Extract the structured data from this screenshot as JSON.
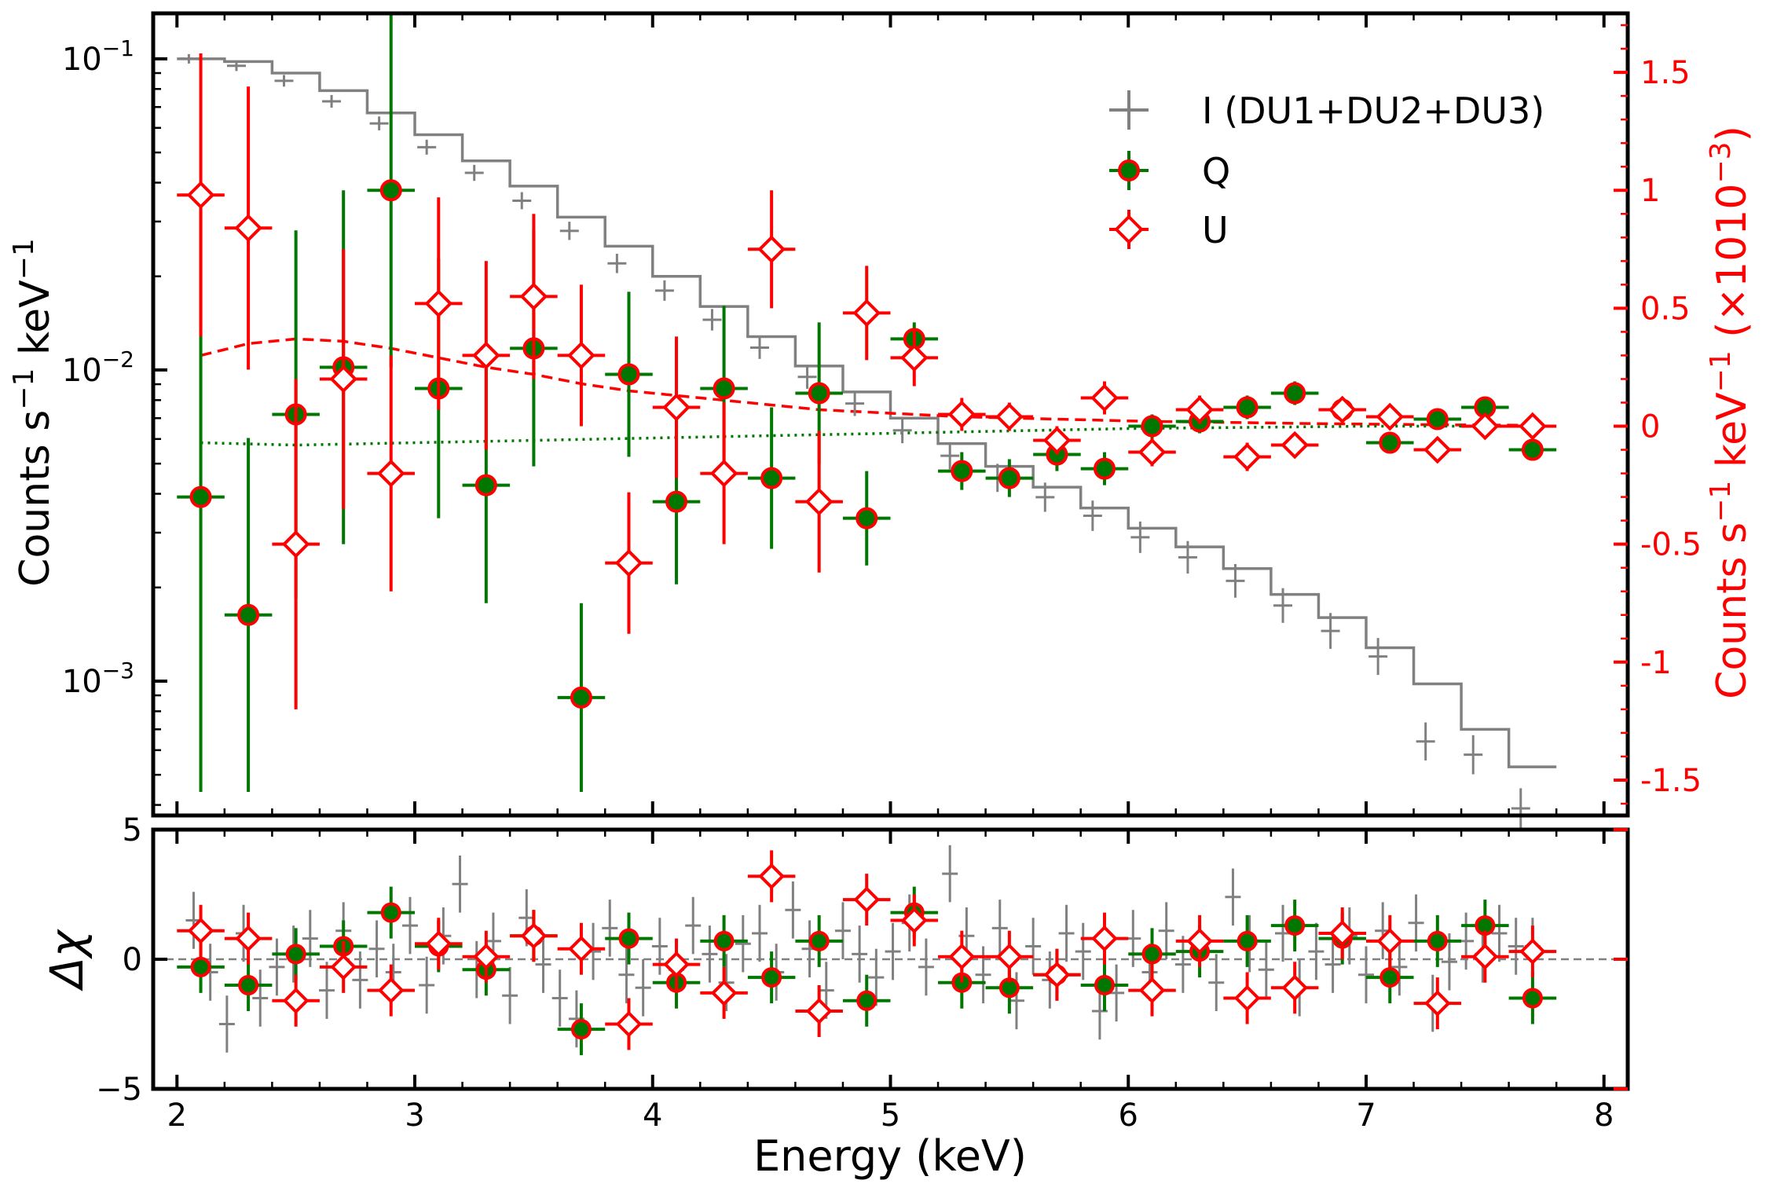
{
  "chart_data": [
    {
      "panel": "top",
      "type": "scatter",
      "xlabel": "",
      "ylabel": "Counts s^-1 keV^-1",
      "ylabel_right": "Counts s^-1 keV^-1 (×10^-3)",
      "xlim": [
        1.9,
        8.1
      ],
      "ylim": [
        0.00037,
        0.14
      ],
      "yscale": "log",
      "ylim_right": [
        -1.65,
        1.75
      ],
      "yticks_left": [
        {
          "value": 0.1,
          "mantissa": "10",
          "exp": "−1"
        },
        {
          "value": 0.01,
          "mantissa": "10",
          "exp": "−2"
        },
        {
          "value": 0.001,
          "mantissa": "10",
          "exp": "−3"
        }
      ],
      "yticks_right": [
        "1.5",
        "1",
        "0.5",
        "0",
        "-0.5",
        "-1",
        "-1.5"
      ],
      "yticks_right_values": [
        1.5,
        1.0,
        0.5,
        0.0,
        -0.5,
        -1.0,
        -1.5
      ],
      "legend": {
        "placement": "top-right",
        "entries": [
          {
            "label": "I (DU1+DU2+DU3)",
            "color": "#808080",
            "marker": "plus"
          },
          {
            "label": "Q",
            "color": "#007700",
            "marker": "filled-circle"
          },
          {
            "label": "U",
            "color": "#ff0000",
            "marker": "open-diamond"
          }
        ]
      },
      "series": [
        {
          "name": "I (DU1+DU2+DU3)",
          "axis": "left",
          "color": "#808080",
          "x": [
            2.05,
            2.25,
            2.45,
            2.65,
            2.85,
            3.05,
            3.25,
            3.45,
            3.65,
            3.85,
            4.05,
            4.25,
            4.45,
            4.65,
            4.85,
            5.05,
            5.25,
            5.45,
            5.65,
            5.85,
            6.05,
            6.25,
            6.45,
            6.65,
            6.85,
            7.05,
            7.25,
            7.45,
            7.65
          ],
          "y": [
            0.1,
            0.095,
            0.085,
            0.073,
            0.062,
            0.052,
            0.043,
            0.035,
            0.028,
            0.022,
            0.018,
            0.0145,
            0.0118,
            0.0095,
            0.0078,
            0.0064,
            0.0053,
            0.0045,
            0.0039,
            0.0034,
            0.0029,
            0.0025,
            0.0021,
            0.00175,
            0.00145,
            0.0012,
            0.00064,
            0.00058,
            0.00039
          ]
        },
        {
          "name": "Q",
          "axis": "right",
          "color": "#007700",
          "x": [
            2.1,
            2.3,
            2.5,
            2.7,
            2.9,
            3.1,
            3.3,
            3.5,
            3.7,
            3.9,
            4.1,
            4.3,
            4.5,
            4.7,
            4.9,
            5.1,
            5.3,
            5.5,
            5.7,
            5.9,
            6.1,
            6.3,
            6.5,
            6.7,
            6.9,
            7.1,
            7.3,
            7.5,
            7.7
          ],
          "y": [
            -0.3,
            -0.8,
            0.05,
            0.25,
            1.0,
            0.16,
            -0.25,
            0.33,
            -1.15,
            0.22,
            -0.32,
            0.16,
            -0.22,
            0.14,
            -0.39,
            0.37,
            -0.19,
            -0.22,
            -0.12,
            -0.18,
            0.0,
            0.02,
            0.08,
            0.14,
            0.07,
            -0.07,
            0.03,
            0.08,
            -0.1
          ],
          "yerr": [
            1.25,
            0.75,
            0.78,
            0.75,
            0.75,
            0.55,
            0.5,
            0.5,
            0.4,
            0.35,
            0.35,
            0.35,
            0.3,
            0.3,
            0.2,
            0.07,
            0.08,
            0.08,
            0.07,
            0.07,
            0.05,
            0.05,
            0.05,
            0.05,
            0.04,
            0.04,
            0.03,
            0.04,
            0.03
          ]
        },
        {
          "name": "U",
          "axis": "right",
          "color": "#ff0000",
          "x": [
            2.1,
            2.3,
            2.5,
            2.7,
            2.9,
            3.1,
            3.3,
            3.5,
            3.7,
            3.9,
            4.1,
            4.3,
            4.5,
            4.7,
            4.9,
            5.1,
            5.3,
            5.5,
            5.7,
            5.9,
            6.1,
            6.3,
            6.5,
            6.7,
            6.9,
            7.1,
            7.3,
            7.5,
            7.7
          ],
          "y": [
            0.98,
            0.84,
            -0.5,
            0.2,
            -0.2,
            0.52,
            0.3,
            0.55,
            0.3,
            -0.58,
            0.08,
            -0.2,
            0.75,
            -0.32,
            0.48,
            0.29,
            0.05,
            0.04,
            -0.06,
            0.12,
            -0.11,
            0.07,
            -0.13,
            -0.08,
            0.07,
            0.04,
            -0.1,
            0.0,
            0.0
          ],
          "yerr": [
            0.6,
            0.6,
            0.7,
            0.55,
            0.5,
            0.45,
            0.4,
            0.35,
            0.3,
            0.3,
            0.3,
            0.3,
            0.25,
            0.3,
            0.2,
            0.12,
            0.07,
            0.06,
            0.06,
            0.07,
            0.06,
            0.06,
            0.06,
            0.05,
            0.05,
            0.05,
            0.04,
            0.04,
            0.04
          ]
        }
      ],
      "models": [
        {
          "series": "I (DU1+DU2+DU3)",
          "axis": "left",
          "style": "solid-step",
          "color": "#808080",
          "x": [
            2.0,
            2.2,
            2.4,
            2.6,
            2.8,
            3.0,
            3.2,
            3.4,
            3.6,
            3.8,
            4.0,
            4.2,
            4.4,
            4.6,
            4.8,
            5.0,
            5.2,
            5.4,
            5.6,
            5.8,
            6.0,
            6.2,
            6.4,
            6.6,
            6.8,
            7.0,
            7.2,
            7.4,
            7.6,
            7.8
          ],
          "y": [
            0.1,
            0.098,
            0.09,
            0.079,
            0.067,
            0.057,
            0.047,
            0.039,
            0.031,
            0.025,
            0.02,
            0.016,
            0.0128,
            0.0103,
            0.0085,
            0.007,
            0.0058,
            0.0049,
            0.0042,
            0.0036,
            0.0031,
            0.0027,
            0.0023,
            0.0019,
            0.0016,
            0.00128,
            0.00098,
            0.0007,
            0.00053,
            0.00039
          ]
        },
        {
          "series": "U",
          "axis": "right",
          "style": "dashed",
          "color": "#ff0000",
          "x": [
            2.1,
            2.3,
            2.5,
            2.7,
            2.9,
            3.1,
            3.3,
            3.5,
            3.7,
            3.9,
            4.1,
            4.3,
            4.5,
            4.7,
            4.9,
            5.1,
            5.3,
            5.5,
            5.7,
            5.9,
            6.1,
            6.3,
            6.5,
            6.7,
            6.9,
            7.1,
            7.3,
            7.5,
            7.7
          ],
          "y": [
            0.3,
            0.35,
            0.37,
            0.36,
            0.33,
            0.29,
            0.25,
            0.22,
            0.18,
            0.15,
            0.13,
            0.11,
            0.09,
            0.07,
            0.06,
            0.05,
            0.04,
            0.035,
            0.03,
            0.025,
            0.02,
            0.018,
            0.015,
            0.012,
            0.01,
            0.008,
            0.006,
            0.005,
            0.004
          ]
        },
        {
          "series": "Q",
          "axis": "right",
          "style": "dotted",
          "color": "#007700",
          "x": [
            2.1,
            2.5,
            3.0,
            3.5,
            4.0,
            4.5,
            5.0,
            5.5,
            6.0,
            6.5,
            7.0,
            7.5,
            7.7
          ],
          "y": [
            -0.07,
            -0.08,
            -0.07,
            -0.06,
            -0.05,
            -0.04,
            -0.03,
            -0.02,
            -0.01,
            -0.005,
            0.0,
            0.0,
            0.0
          ]
        }
      ]
    },
    {
      "panel": "bottom",
      "type": "scatter",
      "xlabel": "Energy (keV)",
      "ylabel": "Δχ",
      "xlim": [
        1.9,
        8.1
      ],
      "ylim": [
        -5,
        5
      ],
      "xticks": [
        "2",
        "3",
        "4",
        "5",
        "6",
        "7",
        "8"
      ],
      "xticks_values": [
        2,
        3,
        4,
        5,
        6,
        7,
        8
      ],
      "yticks": [
        "5",
        "0",
        "−5"
      ],
      "yticks_values": [
        5,
        0,
        -5
      ],
      "reference_line": {
        "y": 0,
        "style": "dashed",
        "color": "#808080"
      },
      "series": [
        {
          "name": "I (DU1+DU2+DU3)",
          "color": "#808080",
          "x": [
            2.07,
            2.14,
            2.21,
            2.28,
            2.35,
            2.42,
            2.49,
            2.56,
            2.63,
            2.7,
            2.77,
            2.84,
            2.91,
            2.98,
            3.05,
            3.12,
            3.19,
            3.26,
            3.33,
            3.4,
            3.47,
            3.54,
            3.61,
            3.68,
            3.75,
            3.82,
            3.89,
            3.96,
            4.03,
            4.1,
            4.17,
            4.24,
            4.31,
            4.38,
            4.45,
            4.52,
            4.59,
            4.66,
            4.73,
            4.8,
            4.87,
            4.94,
            5.01,
            5.08,
            5.15,
            5.25,
            5.32,
            5.39,
            5.46,
            5.53,
            5.6,
            5.67,
            5.74,
            5.81,
            5.88,
            5.95,
            6.02,
            6.09,
            6.16,
            6.23,
            6.3,
            6.37,
            6.44,
            6.51,
            6.58,
            6.65,
            6.72,
            6.79,
            6.86,
            6.93,
            7.0,
            7.07,
            7.14,
            7.21,
            7.28,
            7.35,
            7.42,
            7.49,
            7.56,
            7.63,
            7.7
          ],
          "y": [
            1.5,
            -0.5,
            -2.5,
            1.0,
            -1.5,
            -0.3,
            0.2,
            0.8,
            -1.2,
            1.1,
            -0.8,
            0.4,
            -0.5,
            1.3,
            -1.0,
            0.9,
            2.9,
            -0.4,
            0.7,
            -1.4,
            1.6,
            -0.2,
            -1.5,
            -2.3,
            0.3,
            1.2,
            -0.6,
            -1.1,
            0.5,
            -0.4,
            1.3,
            0.2,
            -0.9,
            0.6,
            1.0,
            -0.5,
            1.9,
            0.4,
            -1.2,
            1.1,
            0.2,
            -0.7,
            0.3,
            1.4,
            -0.3,
            3.3,
            0.9,
            -0.6,
            1.2,
            -1.6,
            0.5,
            -0.8,
            1.0,
            0.3,
            -2.0,
            -1.3,
            0.8,
            -0.5,
            1.1,
            -0.2,
            0.4,
            -0.9,
            2.4,
            0.6,
            -0.4,
            1.0,
            -1.1,
            0.3,
            -0.2,
            0.9,
            -0.6,
            1.1,
            -0.3,
            1.4,
            -1.7,
            -0.1,
            0.7,
            0.2,
            1.0,
            0.5,
            0.5
          ],
          "yerr": [
            1.1,
            1.1,
            1.1,
            1.1,
            1.1,
            1.1,
            1.1,
            1.1,
            1.1,
            1.1,
            1.1,
            1.1,
            1.1,
            1.1,
            1.1,
            1.1,
            1.1,
            1.1,
            1.1,
            1.1,
            1.1,
            1.1,
            1.1,
            1.1,
            1.1,
            1.1,
            1.1,
            1.1,
            1.1,
            1.1,
            1.1,
            1.1,
            1.1,
            1.1,
            1.1,
            1.1,
            1.1,
            1.1,
            1.1,
            1.1,
            1.1,
            1.1,
            1.1,
            1.1,
            1.1,
            1.1,
            1.1,
            1.1,
            1.1,
            1.1,
            1.1,
            1.1,
            1.1,
            1.1,
            1.1,
            1.1,
            1.1,
            1.1,
            1.1,
            1.1,
            1.1,
            1.1,
            1.1,
            1.1,
            1.1,
            1.1,
            1.1,
            1.1,
            1.1,
            1.1,
            1.1,
            1.1,
            1.1,
            1.1,
            1.1,
            1.1,
            1.1,
            1.1,
            1.1,
            1.1,
            1.1
          ]
        },
        {
          "name": "Q",
          "color": "#007700",
          "x": [
            2.1,
            2.3,
            2.5,
            2.7,
            2.9,
            3.1,
            3.3,
            3.5,
            3.7,
            3.9,
            4.1,
            4.3,
            4.5,
            4.7,
            4.9,
            5.1,
            5.3,
            5.5,
            5.7,
            5.9,
            6.1,
            6.3,
            6.5,
            6.7,
            6.9,
            7.1,
            7.3,
            7.5,
            7.7
          ],
          "y": [
            -0.3,
            -1.0,
            0.2,
            0.5,
            1.8,
            0.5,
            -0.4,
            0.9,
            -2.7,
            0.8,
            -0.9,
            0.7,
            -0.7,
            0.7,
            -1.6,
            1.8,
            -0.9,
            -1.1,
            -0.6,
            -1.0,
            0.2,
            0.3,
            0.7,
            1.3,
            0.8,
            -0.7,
            0.7,
            1.3,
            -1.5
          ],
          "yerr": [
            1.0,
            1.0,
            1.0,
            1.0,
            1.0,
            1.0,
            1.0,
            1.0,
            1.0,
            1.0,
            1.0,
            1.0,
            1.0,
            1.0,
            1.0,
            1.0,
            1.0,
            1.0,
            1.0,
            1.0,
            1.0,
            1.0,
            1.0,
            1.0,
            1.0,
            1.0,
            1.0,
            1.0,
            1.0
          ]
        },
        {
          "name": "U",
          "color": "#ff0000",
          "x": [
            2.1,
            2.3,
            2.5,
            2.7,
            2.9,
            3.1,
            3.3,
            3.5,
            3.7,
            3.9,
            4.1,
            4.3,
            4.5,
            4.7,
            4.9,
            5.1,
            5.3,
            5.5,
            5.7,
            5.9,
            6.1,
            6.3,
            6.5,
            6.7,
            6.9,
            7.1,
            7.3,
            7.5,
            7.7
          ],
          "y": [
            1.1,
            0.8,
            -1.6,
            -0.3,
            -1.2,
            0.6,
            0.1,
            0.9,
            0.4,
            -2.5,
            -0.2,
            -1.3,
            3.2,
            -2.0,
            2.3,
            1.5,
            0.1,
            0.1,
            -0.6,
            0.8,
            -1.2,
            0.7,
            -1.5,
            -1.1,
            1.0,
            0.7,
            -1.7,
            0.1,
            0.3
          ],
          "yerr": [
            1.0,
            1.0,
            1.0,
            1.0,
            1.0,
            1.0,
            1.0,
            1.0,
            1.0,
            1.0,
            1.0,
            1.0,
            1.0,
            1.0,
            1.0,
            1.0,
            1.0,
            1.0,
            1.0,
            1.0,
            1.0,
            1.0,
            1.0,
            1.0,
            1.0,
            1.0,
            1.0,
            1.0,
            1.0
          ]
        }
      ]
    }
  ]
}
